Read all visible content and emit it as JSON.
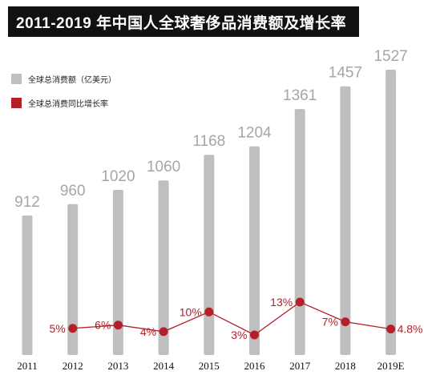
{
  "title": "2011-2019 年中国人全球奢侈品消费额及增长率",
  "colors": {
    "bar": "#bfbfbf",
    "line": "#b3202a",
    "title_bg": "#111111"
  },
  "chart_data": {
    "type": "bar",
    "categories": [
      "2011",
      "2012",
      "2013",
      "2014",
      "2015",
      "2016",
      "2017",
      "2018",
      "2019E"
    ],
    "series": [
      {
        "name": "全球总消费额（亿美元）",
        "type": "bar",
        "values": [
          912,
          960,
          1020,
          1060,
          1168,
          1204,
          1361,
          1457,
          1527
        ]
      },
      {
        "name": "全球总消费同比增长率",
        "type": "line",
        "values": [
          null,
          5,
          6,
          4,
          10,
          3,
          13,
          7,
          4.8
        ],
        "labels": [
          "",
          "5%",
          "6%",
          "4%",
          "10%",
          "3%",
          "13%",
          "7%",
          "4.8%"
        ]
      }
    ],
    "bar_labels": [
      "912",
      "960",
      "1020",
      "1060",
      "1168",
      "1204",
      "1361",
      "1457",
      "1527"
    ],
    "legend_position": "top-left",
    "grid": false
  }
}
